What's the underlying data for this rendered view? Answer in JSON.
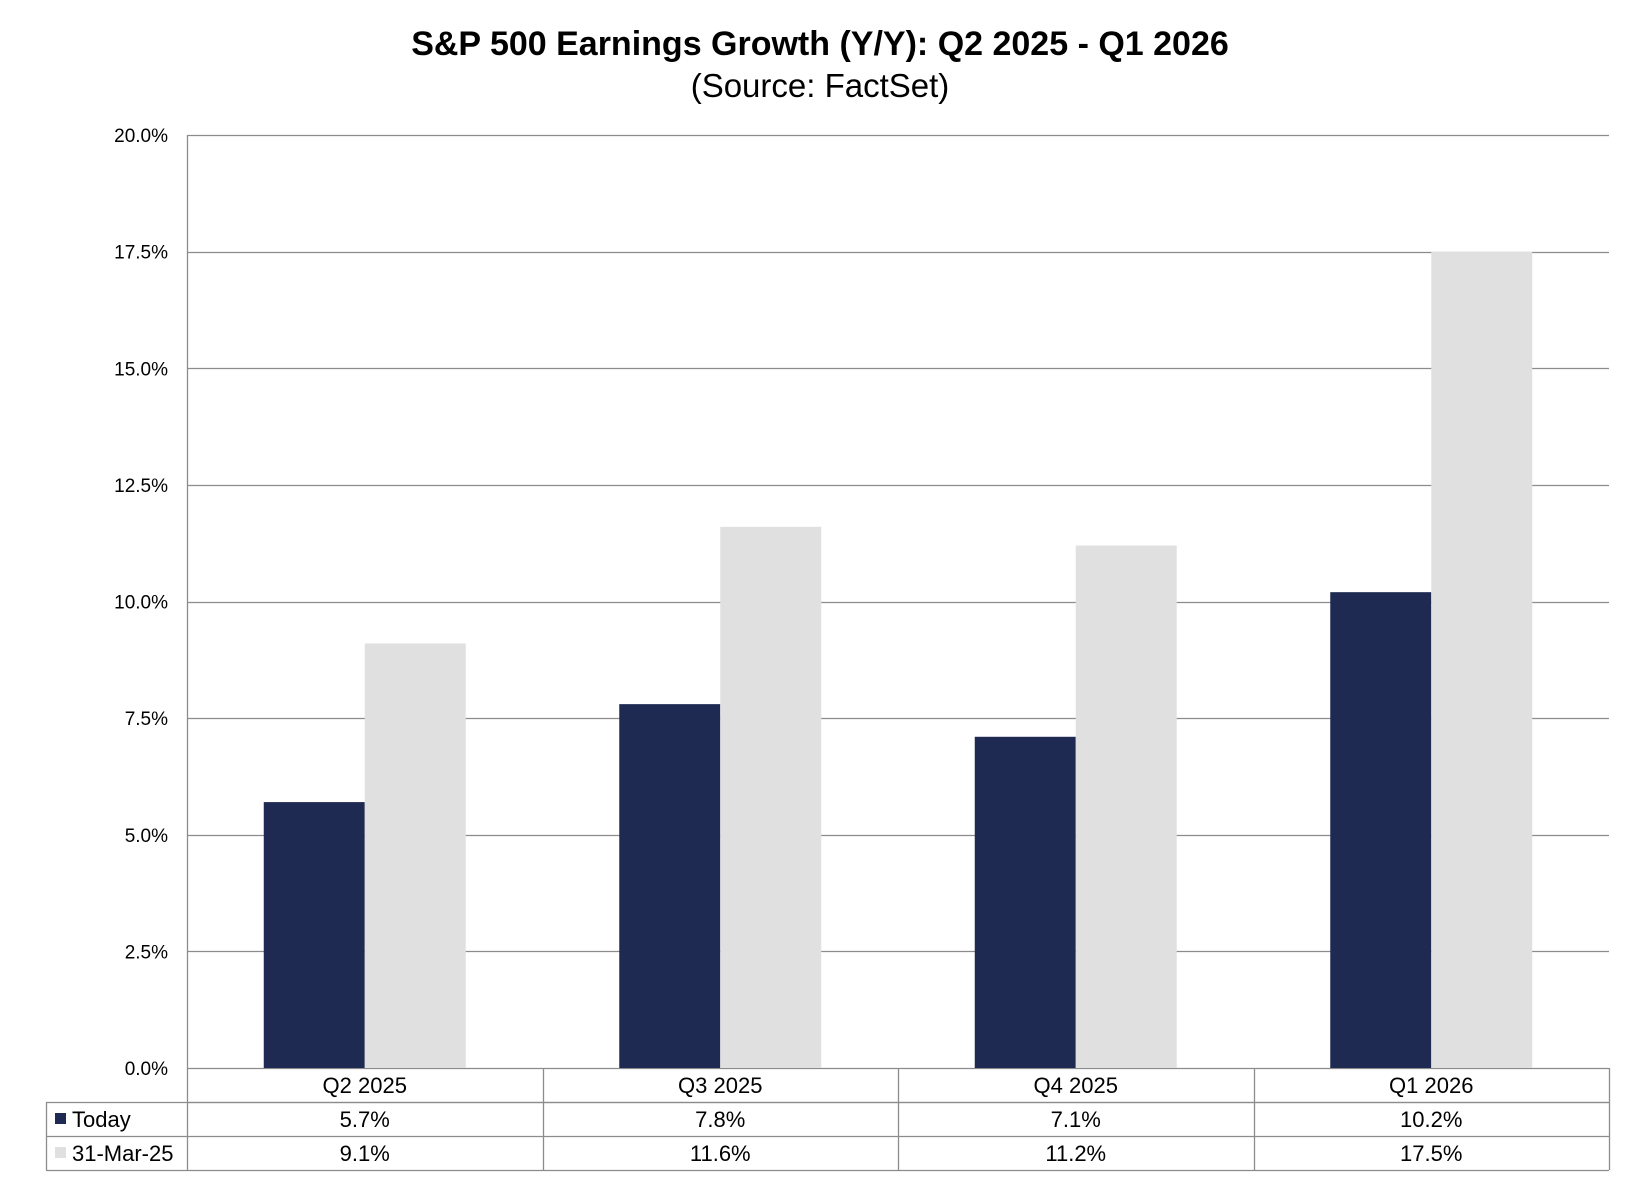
{
  "chart_data": {
    "type": "bar",
    "title": "S&P 500 Earnings Growth (Y/Y): Q2 2025 - Q1 2026",
    "subtitle": "(Source: FactSet)",
    "categories": [
      "Q2 2025",
      "Q3 2025",
      "Q4 2025",
      "Q1 2026"
    ],
    "series": [
      {
        "name": "Today",
        "color": "#1f2a52",
        "values": [
          5.7,
          7.8,
          7.1,
          10.2
        ],
        "labels": [
          "5.7%",
          "7.8%",
          "7.1%",
          "10.2%"
        ]
      },
      {
        "name": "31-Mar-25",
        "color": "#e0e0e0",
        "values": [
          9.1,
          11.6,
          11.2,
          17.5
        ],
        "labels": [
          "9.1%",
          "11.6%",
          "11.2%",
          "17.5%"
        ]
      }
    ],
    "ylim": [
      0,
      20
    ],
    "yticks": [
      0,
      2.5,
      5,
      7.5,
      10,
      12.5,
      15,
      17.5,
      20
    ],
    "ytick_labels": [
      "0.0%",
      "2.5%",
      "5.0%",
      "7.5%",
      "10.0%",
      "12.5%",
      "15.0%",
      "17.5%",
      "20.0%"
    ],
    "grid": true,
    "legend": "data-table",
    "gridline_color": "#8c8c8c"
  }
}
